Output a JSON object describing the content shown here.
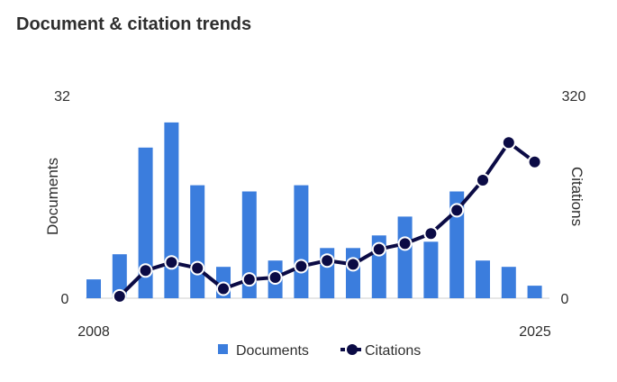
{
  "header": {
    "title": "Document & citation trends"
  },
  "chart_data": {
    "type": "bar",
    "title": "Document & citation trends",
    "x": [
      2008,
      2009,
      2010,
      2011,
      2012,
      2013,
      2014,
      2015,
      2016,
      2017,
      2018,
      2019,
      2020,
      2021,
      2022,
      2023,
      2024,
      2025
    ],
    "x_tick_labels": [
      "2008",
      "2025"
    ],
    "series": [
      {
        "name": "Documents",
        "type": "bar",
        "axis": "left",
        "color": "#3b7ddd",
        "values": [
          3,
          7,
          24,
          28,
          18,
          5,
          17,
          6,
          18,
          8,
          8,
          10,
          13,
          9,
          17,
          6,
          5,
          2
        ]
      },
      {
        "name": "Citations",
        "type": "line",
        "axis": "right",
        "color": "#0b0b45",
        "x": [
          2009,
          2010,
          2011,
          2012,
          2013,
          2014,
          2015,
          2016,
          2017,
          2018,
          2019,
          2020,
          2021,
          2022,
          2023,
          2024,
          2025
        ],
        "values": [
          3,
          44,
          57,
          48,
          15,
          30,
          33,
          51,
          60,
          54,
          78,
          87,
          103,
          140,
          188,
          248,
          217
        ]
      }
    ],
    "left_axis": {
      "label": "Documents",
      "ylim": [
        0,
        32
      ],
      "tick_labels": [
        "0",
        "32"
      ]
    },
    "right_axis": {
      "label": "Citations",
      "ylim": [
        0,
        320
      ],
      "tick_labels": [
        "0",
        "320"
      ]
    },
    "legend": {
      "placement": "bottom",
      "entries": [
        "Documents",
        "Citations"
      ]
    },
    "grid": false
  }
}
